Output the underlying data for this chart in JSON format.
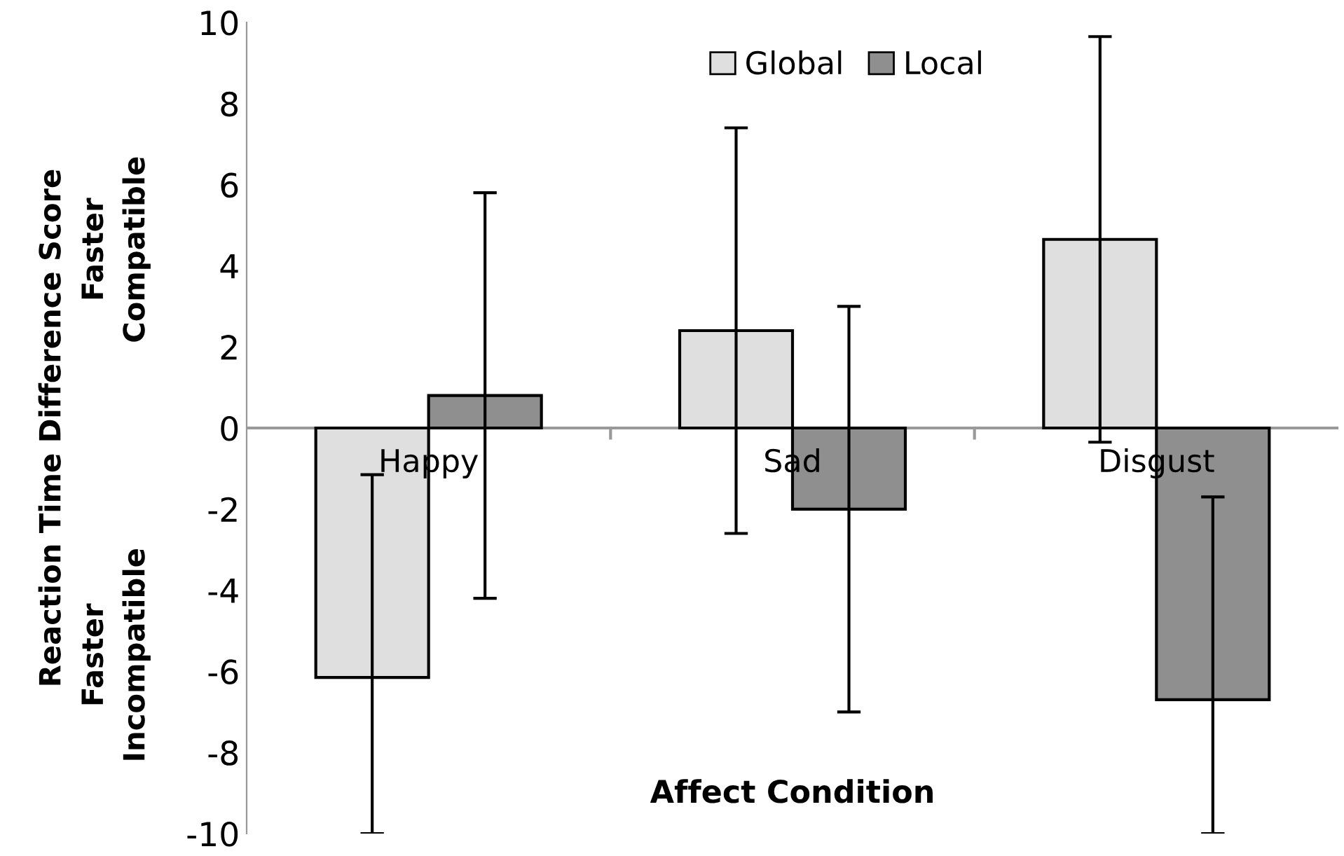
{
  "chart_data": {
    "type": "bar",
    "xlabel": "Affect Condition",
    "ylabel": "Reaction Time Difference Score",
    "annotations": [
      "Faster\nCompatible",
      "Faster\nIncompatible"
    ],
    "categories": [
      "Happy",
      "Sad",
      "Disgust"
    ],
    "series": [
      {
        "name": "Global",
        "color": "#dfdfdf",
        "values": [
          -6.15,
          2.4,
          4.65
        ],
        "errors": [
          [
            -10,
            -1.15
          ],
          5,
          5
        ]
      },
      {
        "name": "Local",
        "color": "#8f8f8f",
        "values": [
          0.8,
          -2.0,
          -6.7
        ],
        "errors": [
          5,
          5,
          [
            -10,
            -1.7
          ]
        ]
      }
    ],
    "ylim": [
      -10,
      10
    ],
    "yticks": [
      -10,
      -8,
      -6,
      -4,
      -2,
      0,
      2,
      4,
      6,
      8,
      10
    ],
    "grid": false,
    "legend": "top"
  }
}
